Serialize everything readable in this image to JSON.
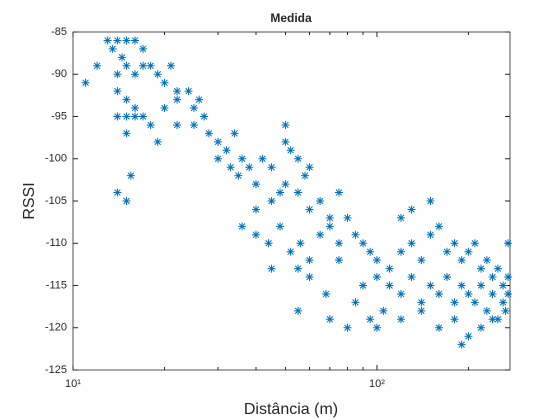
{
  "chart_data": {
    "type": "scatter",
    "title": "Medida",
    "xlabel": "Distância (m)",
    "ylabel": "RSSI",
    "color": "#0072bd",
    "xscale": "log",
    "xlim": [
      10,
      274
    ],
    "ylim": [
      -125,
      -85
    ],
    "xticks": [
      {
        "value": 10,
        "label": "10¹"
      },
      {
        "value": 100,
        "label": "10²"
      }
    ],
    "xminorticks": [
      20,
      30,
      40,
      50,
      60,
      70,
      80,
      90,
      200
    ],
    "yticks": [
      -125,
      -120,
      -115,
      -110,
      -105,
      -100,
      -95,
      -90,
      -85
    ],
    "x": [
      11,
      12,
      13,
      13.5,
      14,
      14.5,
      15,
      16,
      17,
      14,
      15,
      16,
      17,
      18,
      19,
      20,
      21,
      22,
      14,
      15,
      16,
      14,
      15,
      16,
      17,
      18,
      20,
      22,
      24,
      25,
      26,
      27,
      15,
      14,
      15,
      15.5,
      19,
      22,
      28,
      30,
      32,
      34,
      36,
      25,
      30,
      33,
      35,
      38,
      40,
      42,
      45,
      48,
      50,
      52,
      55,
      58,
      40,
      45,
      50,
      55,
      60,
      65,
      70,
      36,
      40,
      44,
      48,
      52,
      56,
      60,
      65,
      70,
      75,
      80,
      85,
      90,
      95,
      100,
      55,
      60,
      68,
      75,
      85,
      95,
      105,
      110,
      120,
      130,
      140,
      150,
      160,
      170,
      180,
      190,
      200,
      210,
      220,
      230,
      240,
      250,
      260,
      270,
      90,
      100,
      110,
      120,
      130,
      140,
      150,
      160,
      170,
      180,
      190,
      200,
      210,
      220,
      230,
      240,
      250,
      260,
      265,
      270,
      70,
      80,
      100,
      120,
      140,
      160,
      180,
      200,
      220,
      240,
      190,
      120,
      130,
      75,
      60,
      50,
      55,
      45,
      270,
      150
    ],
    "y": [
      -91,
      -89,
      -86,
      -87,
      -86,
      -88,
      -86,
      -86,
      -87,
      -90,
      -89,
      -90,
      -89,
      -89,
      -90,
      -91,
      -89,
      -92,
      -92,
      -93,
      -94,
      -95,
      -95,
      -95,
      -95,
      -96,
      -94,
      -93,
      -92,
      -94,
      -93,
      -95,
      -97,
      -104,
      -105,
      -102,
      -98,
      -96,
      -97,
      -98,
      -99,
      -97,
      -100,
      -96,
      -100,
      -101,
      -102,
      -101,
      -103,
      -100,
      -101,
      -104,
      -98,
      -99,
      -100,
      -102,
      -106,
      -105,
      -103,
      -104,
      -106,
      -105,
      -107,
      -108,
      -109,
      -110,
      -108,
      -111,
      -110,
      -112,
      -109,
      -108,
      -110,
      -107,
      -109,
      -110,
      -111,
      -112,
      -113,
      -114,
      -116,
      -112,
      -117,
      -119,
      -118,
      -113,
      -111,
      -110,
      -112,
      -109,
      -108,
      -111,
      -110,
      -112,
      -111,
      -110,
      -113,
      -112,
      -114,
      -113,
      -115,
      -114,
      -115,
      -114,
      -115,
      -116,
      -114,
      -117,
      -115,
      -116,
      -114,
      -117,
      -115,
      -116,
      -117,
      -115,
      -118,
      -116,
      -119,
      -117,
      -118,
      -116,
      -119,
      -120,
      -120,
      -119,
      -118,
      -120,
      -119,
      -121,
      -120,
      -119,
      -122,
      -107,
      -106,
      -104,
      -101,
      -96,
      -118,
      -113,
      -110,
      -105
    ]
  }
}
